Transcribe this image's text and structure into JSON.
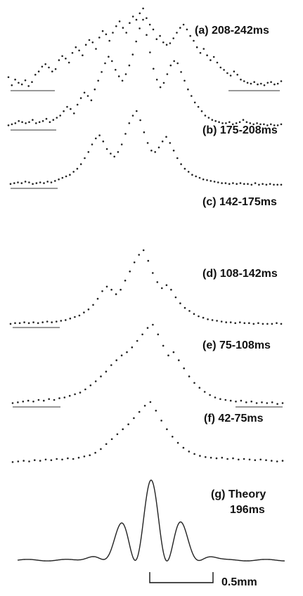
{
  "chart_data": {
    "type": "scatter",
    "x_range": [
      -1.0,
      1.0
    ],
    "panels": [
      {
        "label": "(a) 208-242ms",
        "kind": "points",
        "values": [
          0.15,
          0.05,
          0.12,
          0.08,
          0.06,
          0.11,
          0.04,
          0.09,
          0.18,
          0.22,
          0.28,
          0.31,
          0.27,
          0.22,
          0.25,
          0.36,
          0.41,
          0.38,
          0.33,
          0.45,
          0.52,
          0.48,
          0.42,
          0.55,
          0.61,
          0.58,
          0.5,
          0.64,
          0.72,
          0.68,
          0.6,
          0.7,
          0.78,
          0.84,
          0.76,
          0.7,
          0.82,
          0.9,
          0.86,
          0.94,
          1.0,
          0.88,
          0.8,
          0.74,
          0.62,
          0.66,
          0.58,
          0.55,
          0.57,
          0.63,
          0.7,
          0.76,
          0.8,
          0.74,
          0.66,
          0.6,
          0.52,
          0.45,
          0.5,
          0.42,
          0.36,
          0.4,
          0.33,
          0.27,
          0.24,
          0.2,
          0.17,
          0.22,
          0.18,
          0.12,
          0.1,
          0.08,
          0.07,
          0.09,
          0.06,
          0.07,
          0.05,
          0.08,
          0.09,
          0.06,
          0.07,
          0.1
        ]
      },
      {
        "label": "(b) 175-208ms",
        "kind": "points",
        "values": [
          0.03,
          0.04,
          0.05,
          0.07,
          0.06,
          0.05,
          0.06,
          0.08,
          0.05,
          0.06,
          0.07,
          0.09,
          0.06,
          0.08,
          0.1,
          0.12,
          0.16,
          0.2,
          0.18,
          0.14,
          0.22,
          0.28,
          0.33,
          0.3,
          0.26,
          0.36,
          0.44,
          0.52,
          0.6,
          0.66,
          0.62,
          0.54,
          0.48,
          0.44,
          0.5,
          0.58,
          0.68,
          0.8,
          0.92,
          1.0,
          0.86,
          0.7,
          0.55,
          0.45,
          0.38,
          0.42,
          0.5,
          0.58,
          0.62,
          0.6,
          0.52,
          0.44,
          0.36,
          0.3,
          0.24,
          0.2,
          0.16,
          0.12,
          0.1,
          0.08,
          0.07,
          0.06,
          0.05,
          0.05,
          0.06,
          0.04,
          0.05,
          0.06,
          0.08,
          0.06,
          0.05,
          0.04,
          0.05,
          0.04,
          0.04,
          0.03,
          0.04,
          0.03,
          0.03,
          0.04
        ]
      },
      {
        "label": "(c) 142-175ms",
        "kind": "points",
        "values": [
          0.04,
          0.05,
          0.06,
          0.05,
          0.07,
          0.06,
          0.04,
          0.05,
          0.06,
          0.05,
          0.07,
          0.06,
          0.08,
          0.1,
          0.12,
          0.14,
          0.16,
          0.2,
          0.24,
          0.3,
          0.38,
          0.46,
          0.56,
          0.64,
          0.68,
          0.6,
          0.5,
          0.44,
          0.4,
          0.46,
          0.56,
          0.7,
          0.84,
          0.94,
          1.0,
          0.88,
          0.72,
          0.58,
          0.48,
          0.46,
          0.52,
          0.6,
          0.66,
          0.58,
          0.48,
          0.38,
          0.3,
          0.24,
          0.2,
          0.16,
          0.14,
          0.12,
          0.1,
          0.09,
          0.08,
          0.07,
          0.06,
          0.05,
          0.05,
          0.04,
          0.05,
          0.04,
          0.05,
          0.04,
          0.04,
          0.03,
          0.05,
          0.03,
          0.04,
          0.03,
          0.04,
          0.03,
          0.03,
          0.03
        ]
      },
      {
        "label": "(d) 108-142ms",
        "kind": "points",
        "values": [
          0.03,
          0.04,
          0.04,
          0.05,
          0.04,
          0.05,
          0.04,
          0.05,
          0.06,
          0.05,
          0.06,
          0.07,
          0.08,
          0.1,
          0.12,
          0.14,
          0.18,
          0.22,
          0.28,
          0.36,
          0.46,
          0.52,
          0.48,
          0.42,
          0.48,
          0.6,
          0.72,
          0.84,
          0.94,
          1.0,
          0.86,
          0.7,
          0.58,
          0.5,
          0.54,
          0.48,
          0.38,
          0.3,
          0.24,
          0.2,
          0.16,
          0.13,
          0.11,
          0.09,
          0.08,
          0.07,
          0.06,
          0.05,
          0.05,
          0.04,
          0.05,
          0.04,
          0.04,
          0.03,
          0.04,
          0.03,
          0.03,
          0.03,
          0.04,
          0.03
        ]
      },
      {
        "label": "(e) 75-108ms",
        "kind": "points",
        "values": [
          0.03,
          0.04,
          0.05,
          0.06,
          0.05,
          0.07,
          0.06,
          0.08,
          0.07,
          0.09,
          0.1,
          0.12,
          0.14,
          0.16,
          0.2,
          0.25,
          0.3,
          0.36,
          0.42,
          0.5,
          0.56,
          0.62,
          0.66,
          0.72,
          0.8,
          0.88,
          0.96,
          1.0,
          0.88,
          0.74,
          0.62,
          0.66,
          0.56,
          0.46,
          0.36,
          0.28,
          0.22,
          0.17,
          0.13,
          0.1,
          0.08,
          0.07,
          0.06,
          0.05,
          0.06,
          0.04,
          0.05,
          0.03,
          0.04,
          0.03,
          0.04,
          0.02,
          0.03
        ]
      },
      {
        "label": "(f) 42-75ms",
        "kind": "points",
        "values": [
          0.03,
          0.04,
          0.05,
          0.04,
          0.06,
          0.05,
          0.07,
          0.06,
          0.08,
          0.07,
          0.09,
          0.08,
          0.1,
          0.12,
          0.14,
          0.18,
          0.24,
          0.32,
          0.4,
          0.48,
          0.56,
          0.64,
          0.74,
          0.84,
          0.94,
          1.0,
          0.86,
          0.7,
          0.56,
          0.44,
          0.34,
          0.26,
          0.2,
          0.16,
          0.13,
          0.11,
          0.1,
          0.09,
          0.1,
          0.08,
          0.09,
          0.07,
          0.08,
          0.07,
          0.06,
          0.07,
          0.06,
          0.05,
          0.04,
          0.05
        ]
      },
      {
        "label": "(g) Theory",
        "label2": "196ms",
        "kind": "curve"
      }
    ],
    "scale_label": "0.5mm"
  }
}
